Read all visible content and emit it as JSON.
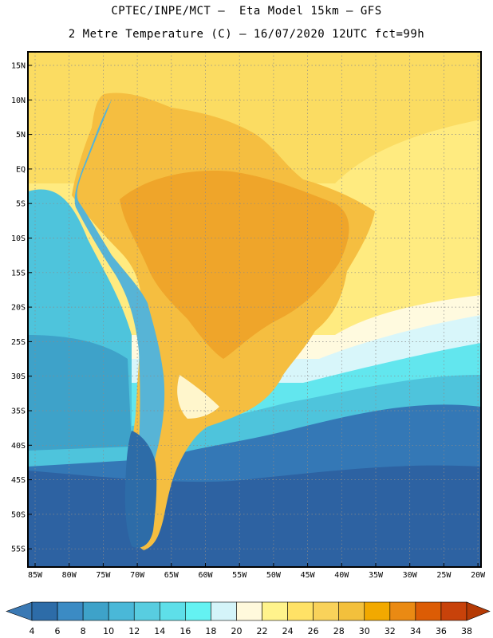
{
  "title": {
    "line1": "CPTEC/INPE/MCT –  Eta Model 15km – GFS",
    "line2": "2 Metre Temperature (C) – 16/07/2020 12UTC fct=99h"
  },
  "lat_ticks": [
    "15N",
    "10N",
    "5N",
    "EQ",
    "5S",
    "10S",
    "15S",
    "20S",
    "25S",
    "30S",
    "35S",
    "40S",
    "45S",
    "50S",
    "55S"
  ],
  "lon_ticks": [
    "85W",
    "80W",
    "75W",
    "70W",
    "65W",
    "60W",
    "55W",
    "50W",
    "45W",
    "40W",
    "35W",
    "30W",
    "25W",
    "20W"
  ],
  "colorbar": {
    "labels": [
      "4",
      "6",
      "8",
      "10",
      "12",
      "14",
      "16",
      "18",
      "20",
      "22",
      "24",
      "26",
      "28",
      "30",
      "32",
      "34",
      "36",
      "38"
    ],
    "colors": [
      "#3a79b4",
      "#2d6ca8",
      "#3b8bc4",
      "#3ea2c9",
      "#4ab8d8",
      "#58cde0",
      "#5edfe9",
      "#64f2f2",
      "#d4f4f9",
      "#fff9dc",
      "#fff38c",
      "#ffe266",
      "#f9d25a",
      "#f3c03c",
      "#f2a900",
      "#ea8a13",
      "#dc5c05",
      "#c8420a",
      "#b53a05"
    ]
  },
  "map_colors": {
    "ocean_south_deep": "#2d62a2",
    "ocean_south": "#3478b6",
    "ocean_mid": "#3ea2c9",
    "ocean_cyan": "#4ec4dc",
    "ocean_light": "#62e6ee",
    "ocean_pale": "#d8f6fa",
    "ocean_cream": "#fffadf",
    "ocean_warm": "#ffeb80",
    "ocean_tropic": "#fbdc62",
    "land_hot": "#efa52a",
    "land_warm": "#f5be40",
    "andes_cold": "#57b4d6",
    "patagonia": "#2d6ca8"
  }
}
